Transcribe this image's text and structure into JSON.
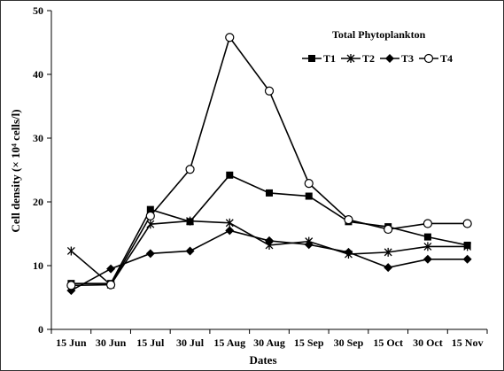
{
  "chart_data": {
    "type": "line",
    "title": "Total Phytoplankton",
    "xlabel": "Dates",
    "ylabel": "Cell density (× 10⁴ cells/l)",
    "ylim": [
      0,
      50
    ],
    "yticks": [
      "0",
      "10",
      "20",
      "30",
      "40",
      "50"
    ],
    "categories": [
      "15 Jun",
      "30 Jun",
      "15 Jul",
      "30 Jul",
      "15 Aug",
      "30 Aug",
      "15 Sep",
      "30 Sep",
      "15 Oct",
      "30 Oct",
      "15 Nov"
    ],
    "legend_placement": "top-right",
    "series": [
      {
        "name": "T1",
        "marker": "square",
        "values": [
          7.2,
          7.2,
          18.8,
          16.9,
          24.2,
          21.4,
          20.9,
          16.9,
          16.1,
          14.5,
          13.2
        ]
      },
      {
        "name": "T2",
        "marker": "asterisk",
        "values": [
          12.3,
          7.0,
          16.5,
          17.0,
          16.7,
          13.2,
          13.8,
          11.8,
          12.1,
          13.0,
          13.0
        ]
      },
      {
        "name": "T3",
        "marker": "diamond",
        "values": [
          6.1,
          9.5,
          11.9,
          12.3,
          15.5,
          13.9,
          13.3,
          12.1,
          9.7,
          11.0,
          11.0
        ]
      },
      {
        "name": "T4",
        "marker": "circle",
        "values": [
          6.9,
          7.0,
          17.8,
          25.1,
          45.8,
          37.4,
          22.9,
          17.2,
          15.7,
          16.6,
          16.6
        ]
      }
    ]
  }
}
